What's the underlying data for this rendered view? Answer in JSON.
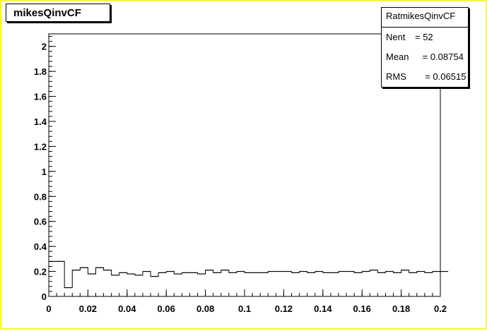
{
  "title": "mikesQinvCF",
  "stats": {
    "title": "RatmikesQinvCF",
    "rows": [
      {
        "key": "Nent",
        "value": "= 52"
      },
      {
        "key": "Mean",
        "value": " = 0.08754"
      },
      {
        "key": "RMS",
        "value": "  = 0.06515"
      }
    ]
  },
  "chart_data": {
    "type": "line",
    "style": "step-histogram",
    "title": "mikesQinvCF",
    "xlim": [
      0,
      0.2
    ],
    "ylim": [
      0,
      2.1
    ],
    "bin_width": 0.004,
    "x_ticks": [
      "0",
      "0.02",
      "0.04",
      "0.06",
      "0.08",
      "0.1",
      "0.12",
      "0.14",
      "0.16",
      "0.18",
      "0.2"
    ],
    "y_ticks": [
      "0",
      "0.2",
      "0.4",
      "0.6",
      "0.8",
      "1",
      "1.2",
      "1.4",
      "1.6",
      "1.8",
      "2"
    ],
    "values": [
      0.28,
      0.28,
      0.07,
      0.21,
      0.23,
      0.18,
      0.23,
      0.21,
      0.17,
      0.19,
      0.18,
      0.17,
      0.2,
      0.16,
      0.19,
      0.2,
      0.18,
      0.19,
      0.19,
      0.18,
      0.21,
      0.19,
      0.21,
      0.19,
      0.2,
      0.19,
      0.19,
      0.19,
      0.2,
      0.2,
      0.2,
      0.19,
      0.2,
      0.19,
      0.2,
      0.19,
      0.19,
      0.2,
      0.2,
      0.19,
      0.2,
      0.21,
      0.19,
      0.2,
      0.19,
      0.21,
      0.19,
      0.2,
      0.19,
      0.2,
      0.2
    ],
    "color": "#000000",
    "frame_color": "#ffff00"
  }
}
